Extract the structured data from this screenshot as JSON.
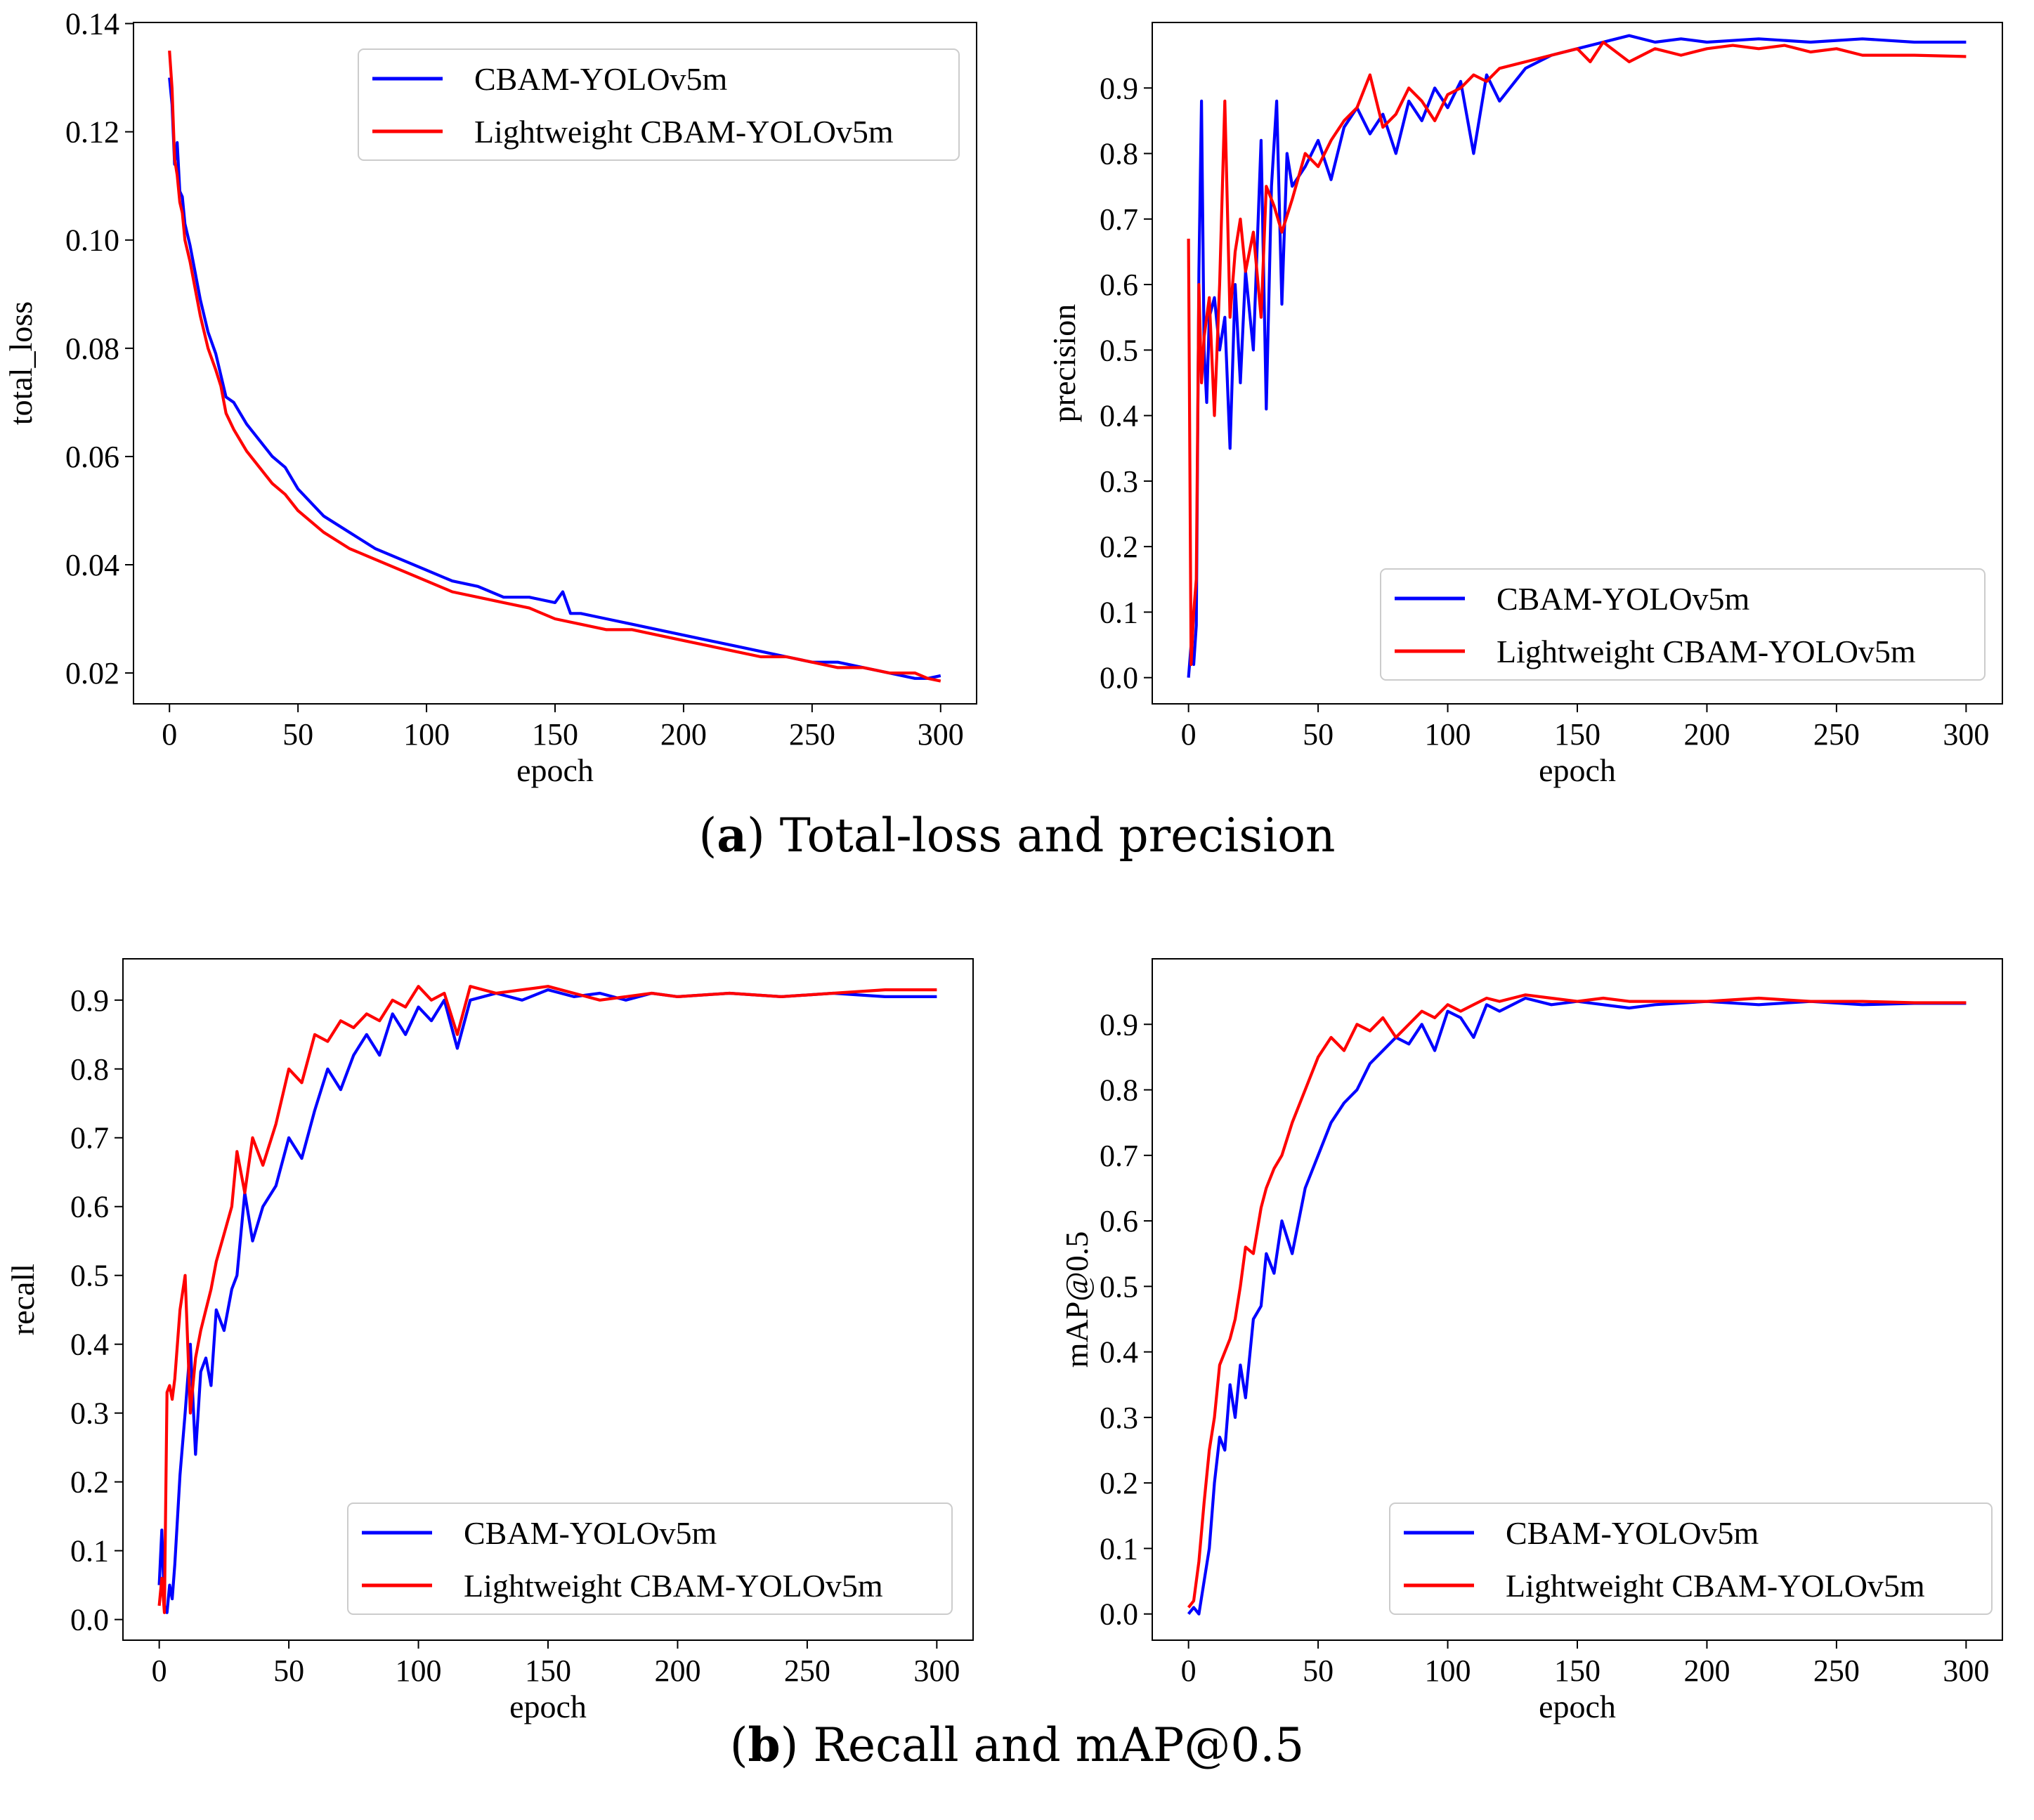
{
  "figure": {
    "caption_a": {
      "label": "a",
      "text": "Total-loss and precision"
    },
    "caption_b": {
      "label": "b",
      "text": "Recall and mAP@0.5"
    }
  },
  "colors": {
    "series_1": "#0000ff",
    "series_2": "#ff0000"
  },
  "chart_data": [
    {
      "id": "total_loss",
      "type": "line",
      "xlabel": "epoch",
      "ylabel": "total_loss",
      "xlim": [
        -14,
        314
      ],
      "ylim": [
        0.0143,
        0.1402
      ],
      "xticks": [
        "0",
        "50",
        "100",
        "150",
        "200",
        "250",
        "300"
      ],
      "yticks": [
        "0.02",
        "0.04",
        "0.06",
        "0.08",
        "0.10",
        "0.12",
        "0.14"
      ],
      "legend_position": "top-right",
      "series": [
        {
          "name": "CBAM-YOLOv5m",
          "x": [
            0,
            1,
            2,
            3,
            4,
            5,
            6,
            8,
            10,
            12,
            15,
            18,
            20,
            22,
            25,
            30,
            35,
            40,
            45,
            50,
            60,
            70,
            80,
            90,
            100,
            110,
            120,
            130,
            140,
            150,
            153,
            156,
            160,
            170,
            180,
            190,
            200,
            210,
            220,
            230,
            240,
            250,
            260,
            270,
            280,
            290,
            295,
            300
          ],
          "y": [
            0.13,
            0.125,
            0.114,
            0.118,
            0.109,
            0.108,
            0.103,
            0.099,
            0.094,
            0.089,
            0.083,
            0.079,
            0.075,
            0.071,
            0.07,
            0.066,
            0.063,
            0.06,
            0.058,
            0.054,
            0.049,
            0.046,
            0.043,
            0.041,
            0.039,
            0.037,
            0.036,
            0.034,
            0.034,
            0.033,
            0.035,
            0.031,
            0.031,
            0.03,
            0.029,
            0.028,
            0.027,
            0.026,
            0.025,
            0.024,
            0.023,
            0.022,
            0.022,
            0.021,
            0.02,
            0.019,
            0.019,
            0.0195
          ]
        },
        {
          "name": "Lightweight CBAM-YOLOv5m",
          "x": [
            0,
            1,
            2,
            3,
            4,
            5,
            6,
            8,
            10,
            12,
            15,
            18,
            20,
            22,
            25,
            30,
            35,
            40,
            45,
            50,
            60,
            70,
            80,
            90,
            100,
            110,
            120,
            130,
            140,
            150,
            160,
            170,
            180,
            190,
            200,
            210,
            220,
            230,
            240,
            250,
            260,
            270,
            280,
            290,
            295,
            300
          ],
          "y": [
            0.135,
            0.128,
            0.115,
            0.112,
            0.107,
            0.105,
            0.1,
            0.096,
            0.091,
            0.086,
            0.08,
            0.076,
            0.073,
            0.068,
            0.065,
            0.061,
            0.058,
            0.055,
            0.053,
            0.05,
            0.046,
            0.043,
            0.041,
            0.039,
            0.037,
            0.035,
            0.034,
            0.033,
            0.032,
            0.03,
            0.029,
            0.028,
            0.028,
            0.027,
            0.026,
            0.025,
            0.024,
            0.023,
            0.023,
            0.022,
            0.021,
            0.021,
            0.02,
            0.02,
            0.019,
            0.0185
          ]
        }
      ]
    },
    {
      "id": "precision",
      "type": "line",
      "xlabel": "epoch",
      "ylabel": "precision",
      "xlim": [
        -14,
        314
      ],
      "ylim": [
        -0.04,
        1.0
      ],
      "xticks": [
        "0",
        "50",
        "100",
        "150",
        "200",
        "250",
        "300"
      ],
      "yticks": [
        "0.0",
        "0.1",
        "0.2",
        "0.3",
        "0.4",
        "0.5",
        "0.6",
        "0.7",
        "0.8",
        "0.9"
      ],
      "legend_position": "bottom-right",
      "series": [
        {
          "name": "CBAM-YOLOv5m",
          "x": [
            0,
            1,
            2,
            3,
            4,
            5,
            6,
            7,
            8,
            10,
            12,
            14,
            16,
            18,
            20,
            22,
            25,
            28,
            30,
            32,
            34,
            36,
            38,
            40,
            45,
            50,
            55,
            60,
            65,
            70,
            75,
            80,
            85,
            90,
            95,
            100,
            105,
            110,
            115,
            120,
            130,
            140,
            150,
            160,
            170,
            180,
            190,
            200,
            220,
            240,
            260,
            280,
            300
          ],
          "y": [
            0.0,
            0.05,
            0.02,
            0.08,
            0.62,
            0.88,
            0.5,
            0.42,
            0.55,
            0.58,
            0.5,
            0.55,
            0.35,
            0.6,
            0.45,
            0.62,
            0.5,
            0.82,
            0.41,
            0.75,
            0.88,
            0.57,
            0.8,
            0.75,
            0.78,
            0.82,
            0.76,
            0.84,
            0.87,
            0.83,
            0.86,
            0.8,
            0.88,
            0.85,
            0.9,
            0.87,
            0.91,
            0.8,
            0.92,
            0.88,
            0.93,
            0.95,
            0.96,
            0.97,
            0.98,
            0.97,
            0.975,
            0.97,
            0.975,
            0.97,
            0.975,
            0.97,
            0.97
          ]
        },
        {
          "name": "Lightweight CBAM-YOLOv5m",
          "x": [
            0,
            1,
            2,
            3,
            4,
            5,
            6,
            8,
            10,
            12,
            14,
            16,
            18,
            20,
            22,
            25,
            28,
            30,
            33,
            36,
            40,
            45,
            50,
            55,
            60,
            65,
            70,
            75,
            80,
            85,
            90,
            95,
            100,
            105,
            110,
            115,
            120,
            130,
            140,
            150,
            155,
            160,
            170,
            180,
            190,
            200,
            210,
            220,
            230,
            240,
            250,
            260,
            280,
            300
          ],
          "y": [
            0.67,
            0.02,
            0.1,
            0.15,
            0.6,
            0.45,
            0.52,
            0.58,
            0.4,
            0.6,
            0.88,
            0.55,
            0.65,
            0.7,
            0.62,
            0.68,
            0.55,
            0.75,
            0.72,
            0.68,
            0.73,
            0.8,
            0.78,
            0.82,
            0.85,
            0.87,
            0.92,
            0.84,
            0.86,
            0.9,
            0.88,
            0.85,
            0.89,
            0.9,
            0.92,
            0.91,
            0.93,
            0.94,
            0.95,
            0.96,
            0.94,
            0.97,
            0.94,
            0.96,
            0.95,
            0.96,
            0.965,
            0.96,
            0.965,
            0.955,
            0.96,
            0.95,
            0.95,
            0.948
          ]
        }
      ]
    },
    {
      "id": "recall",
      "type": "line",
      "xlabel": "epoch",
      "ylabel": "recall",
      "xlim": [
        -14,
        314
      ],
      "ylim": [
        -0.03,
        0.96
      ],
      "xticks": [
        "0",
        "50",
        "100",
        "150",
        "200",
        "250",
        "300"
      ],
      "yticks": [
        "0.0",
        "0.1",
        "0.2",
        "0.3",
        "0.4",
        "0.5",
        "0.6",
        "0.7",
        "0.8",
        "0.9"
      ],
      "legend_position": "bottom-right",
      "series": [
        {
          "name": "CBAM-YOLOv5m",
          "x": [
            0,
            1,
            2,
            3,
            4,
            5,
            6,
            8,
            10,
            12,
            14,
            16,
            18,
            20,
            22,
            25,
            28,
            30,
            33,
            36,
            40,
            45,
            50,
            55,
            60,
            65,
            70,
            75,
            80,
            85,
            90,
            95,
            100,
            105,
            110,
            115,
            120,
            130,
            140,
            150,
            160,
            170,
            180,
            190,
            200,
            220,
            240,
            260,
            280,
            300
          ],
          "y": [
            0.05,
            0.13,
            0.02,
            0.01,
            0.05,
            0.03,
            0.08,
            0.21,
            0.3,
            0.4,
            0.24,
            0.36,
            0.38,
            0.34,
            0.45,
            0.42,
            0.48,
            0.5,
            0.62,
            0.55,
            0.6,
            0.63,
            0.7,
            0.67,
            0.74,
            0.8,
            0.77,
            0.82,
            0.85,
            0.82,
            0.88,
            0.85,
            0.89,
            0.87,
            0.9,
            0.83,
            0.9,
            0.91,
            0.9,
            0.915,
            0.905,
            0.91,
            0.9,
            0.91,
            0.905,
            0.91,
            0.905,
            0.91,
            0.905,
            0.905
          ]
        },
        {
          "name": "Lightweight CBAM-YOLOv5m",
          "x": [
            0,
            1,
            2,
            3,
            4,
            5,
            6,
            8,
            10,
            12,
            14,
            16,
            18,
            20,
            22,
            25,
            28,
            30,
            33,
            36,
            40,
            45,
            50,
            55,
            60,
            65,
            70,
            75,
            80,
            85,
            90,
            95,
            100,
            105,
            110,
            115,
            120,
            130,
            140,
            150,
            160,
            170,
            180,
            190,
            200,
            220,
            240,
            260,
            280,
            300
          ],
          "y": [
            0.02,
            0.06,
            0.01,
            0.33,
            0.34,
            0.32,
            0.35,
            0.45,
            0.5,
            0.3,
            0.38,
            0.42,
            0.45,
            0.48,
            0.52,
            0.56,
            0.6,
            0.68,
            0.62,
            0.7,
            0.66,
            0.72,
            0.8,
            0.78,
            0.85,
            0.84,
            0.87,
            0.86,
            0.88,
            0.87,
            0.9,
            0.89,
            0.92,
            0.9,
            0.91,
            0.85,
            0.92,
            0.91,
            0.915,
            0.92,
            0.91,
            0.9,
            0.905,
            0.91,
            0.905,
            0.91,
            0.905,
            0.91,
            0.915,
            0.915
          ]
        }
      ]
    },
    {
      "id": "map50",
      "type": "line",
      "xlabel": "epoch",
      "ylabel": "mAP@0.5",
      "xlim": [
        -14,
        314
      ],
      "ylim": [
        -0.04,
        1.0
      ],
      "xticks": [
        "0",
        "50",
        "100",
        "150",
        "200",
        "250",
        "300"
      ],
      "yticks": [
        "0.0",
        "0.1",
        "0.2",
        "0.3",
        "0.4",
        "0.5",
        "0.6",
        "0.7",
        "0.8",
        "0.9"
      ],
      "legend_position": "bottom-right",
      "series": [
        {
          "name": "CBAM-YOLOv5m",
          "x": [
            0,
            2,
            4,
            6,
            8,
            10,
            12,
            14,
            16,
            18,
            20,
            22,
            25,
            28,
            30,
            33,
            36,
            40,
            45,
            50,
            55,
            60,
            65,
            70,
            75,
            80,
            85,
            90,
            95,
            100,
            105,
            110,
            115,
            120,
            130,
            140,
            150,
            160,
            170,
            180,
            200,
            220,
            240,
            260,
            280,
            300
          ],
          "y": [
            0.0,
            0.01,
            0.0,
            0.05,
            0.1,
            0.2,
            0.27,
            0.25,
            0.35,
            0.3,
            0.38,
            0.33,
            0.45,
            0.47,
            0.55,
            0.52,
            0.6,
            0.55,
            0.65,
            0.7,
            0.75,
            0.78,
            0.8,
            0.84,
            0.86,
            0.88,
            0.87,
            0.9,
            0.86,
            0.92,
            0.91,
            0.88,
            0.93,
            0.92,
            0.94,
            0.93,
            0.935,
            0.93,
            0.925,
            0.93,
            0.935,
            0.93,
            0.935,
            0.93,
            0.932,
            0.932
          ]
        },
        {
          "name": "Lightweight CBAM-YOLOv5m",
          "x": [
            0,
            2,
            4,
            6,
            8,
            10,
            12,
            14,
            16,
            18,
            20,
            22,
            25,
            28,
            30,
            33,
            36,
            40,
            45,
            50,
            55,
            60,
            65,
            70,
            75,
            80,
            85,
            90,
            95,
            100,
            105,
            110,
            115,
            120,
            130,
            140,
            150,
            160,
            170,
            180,
            200,
            220,
            240,
            260,
            280,
            300
          ],
          "y": [
            0.01,
            0.02,
            0.08,
            0.17,
            0.25,
            0.3,
            0.38,
            0.4,
            0.42,
            0.45,
            0.5,
            0.56,
            0.55,
            0.62,
            0.65,
            0.68,
            0.7,
            0.75,
            0.8,
            0.85,
            0.88,
            0.86,
            0.9,
            0.89,
            0.91,
            0.88,
            0.9,
            0.92,
            0.91,
            0.93,
            0.92,
            0.93,
            0.94,
            0.935,
            0.945,
            0.94,
            0.935,
            0.94,
            0.935,
            0.935,
            0.935,
            0.94,
            0.935,
            0.935,
            0.933,
            0.933
          ]
        }
      ]
    }
  ]
}
